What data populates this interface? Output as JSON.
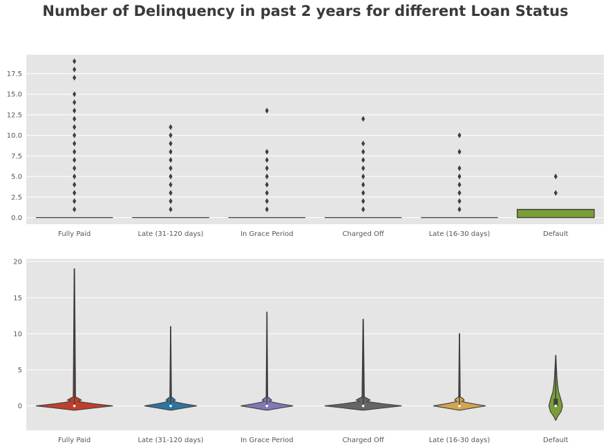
{
  "title": "Number of Delinquency in past 2 years for different Loan Status",
  "chart_data": [
    {
      "type": "box",
      "categories": [
        "Fully Paid",
        "Late (31-120 days)",
        "In Grace Period",
        "Charged Off",
        "Late (16-30 days)",
        "Default"
      ],
      "ylim": [
        -0.8,
        19.8
      ],
      "yticks": [
        "0.0",
        "2.5",
        "5.0",
        "7.5",
        "10.0",
        "12.5",
        "15.0",
        "17.5"
      ],
      "grid": true,
      "series": [
        {
          "category": "Fully Paid",
          "q1": 0,
          "median": 0,
          "q3": 0,
          "whisker_low": 0,
          "whisker_high": 0,
          "outliers": [
            1,
            2,
            3,
            4,
            5,
            6,
            7,
            8,
            9,
            10,
            11,
            12,
            13,
            14,
            15,
            17,
            18,
            19
          ],
          "color": "#e24a33"
        },
        {
          "category": "Late (31-120 days)",
          "q1": 0,
          "median": 0,
          "q3": 0,
          "whisker_low": 0,
          "whisker_high": 0,
          "outliers": [
            1,
            2,
            3,
            4,
            5,
            6,
            7,
            8,
            9,
            10,
            11
          ],
          "color": "#348abd"
        },
        {
          "category": "In Grace Period",
          "q1": 0,
          "median": 0,
          "q3": 0,
          "whisker_low": 0,
          "whisker_high": 0,
          "outliers": [
            1,
            2,
            3,
            4,
            5,
            6,
            7,
            8,
            13
          ],
          "color": "#988ed5"
        },
        {
          "category": "Charged Off",
          "q1": 0,
          "median": 0,
          "q3": 0,
          "whisker_low": 0,
          "whisker_high": 0,
          "outliers": [
            1,
            2,
            3,
            4,
            5,
            6,
            7,
            8,
            9,
            12
          ],
          "color": "#777777"
        },
        {
          "category": "Late (16-30 days)",
          "q1": 0,
          "median": 0,
          "q3": 0,
          "whisker_low": 0,
          "whisker_high": 0,
          "outliers": [
            1,
            2,
            3,
            4,
            5,
            6,
            8,
            10
          ],
          "color": "#fbc15e"
        },
        {
          "category": "Default",
          "q1": 0,
          "median": 1,
          "q3": 1,
          "whisker_low": 0,
          "whisker_high": 1,
          "outliers": [
            3,
            5
          ],
          "color": "#8eba42"
        }
      ]
    },
    {
      "type": "violin",
      "categories": [
        "Fully Paid",
        "Late (31-120 days)",
        "In Grace Period",
        "Charged Off",
        "Late (16-30 days)",
        "Default"
      ],
      "ylim": [
        -3.4,
        20.4
      ],
      "yticks": [
        "0",
        "5",
        "10",
        "15",
        "20"
      ],
      "grid": true,
      "series": [
        {
          "category": "Fully Paid",
          "min": 0,
          "max": 19,
          "color": "#e24a33"
        },
        {
          "category": "Late (31-120 days)",
          "min": 0,
          "max": 11,
          "color": "#348abd"
        },
        {
          "category": "In Grace Period",
          "min": 0,
          "max": 13,
          "color": "#988ed5"
        },
        {
          "category": "Charged Off",
          "min": 0,
          "max": 12,
          "color": "#777777"
        },
        {
          "category": "Late (16-30 days)",
          "min": 0,
          "max": 10,
          "color": "#fbc15e"
        },
        {
          "category": "Default",
          "min": -2,
          "max": 7,
          "color": "#8eba42"
        }
      ]
    }
  ]
}
